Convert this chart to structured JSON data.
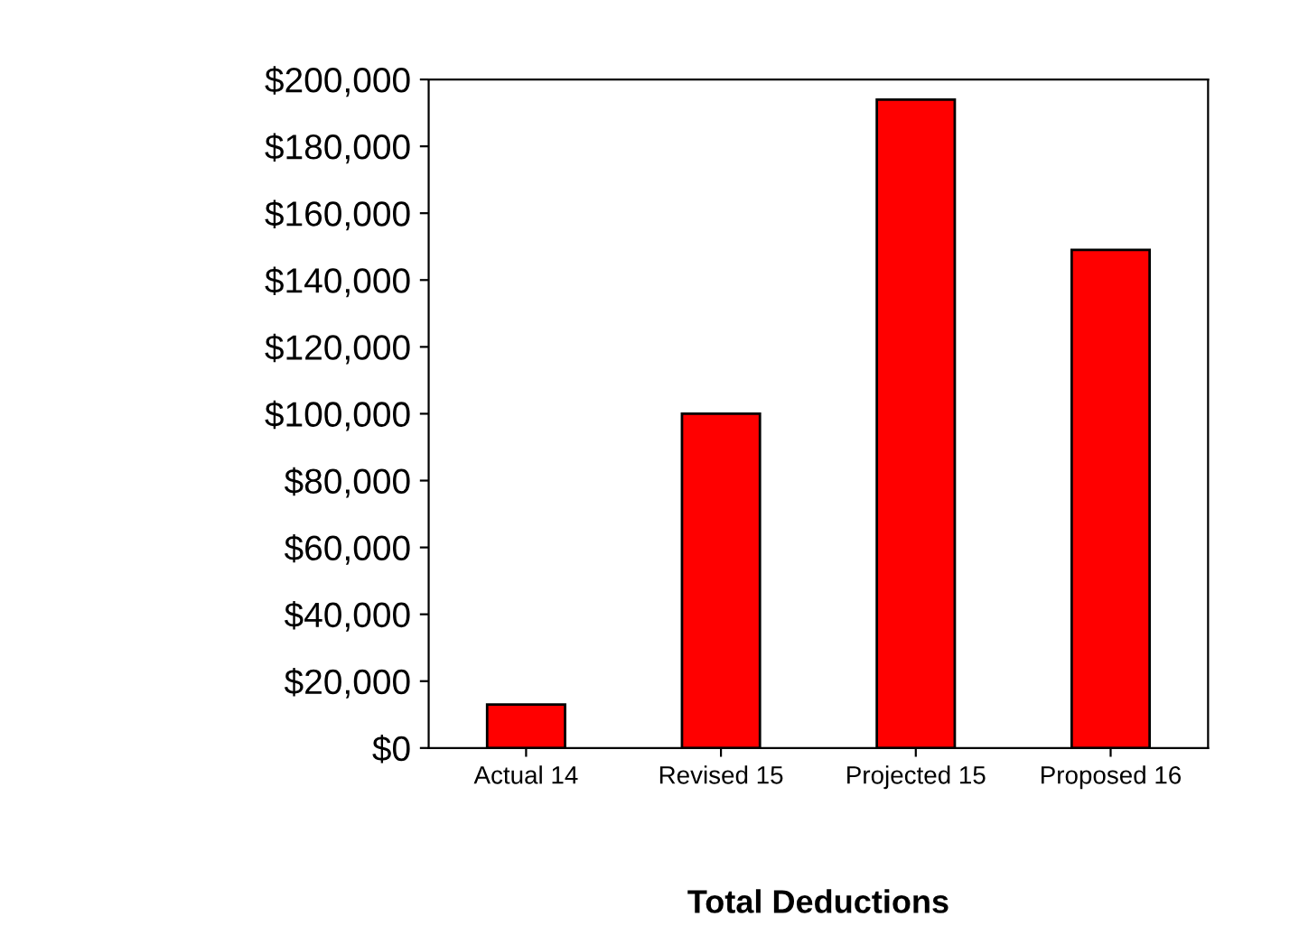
{
  "chart_data": {
    "type": "bar",
    "xlabel": "Total Deductions",
    "categories": [
      "Actual 14",
      "Revised 15",
      "Projected 15",
      "Proposed 16"
    ],
    "values": [
      13000,
      100000,
      194000,
      149000
    ],
    "color": "#ff0000",
    "ylim": [
      0,
      200000
    ],
    "yticks": [
      {
        "value": 0,
        "label": "$0"
      },
      {
        "value": 20000,
        "label": "$20,000"
      },
      {
        "value": 40000,
        "label": "$40,000"
      },
      {
        "value": 60000,
        "label": "$60,000"
      },
      {
        "value": 80000,
        "label": "$80,000"
      },
      {
        "value": 100000,
        "label": "$100,000"
      },
      {
        "value": 120000,
        "label": "$120,000"
      },
      {
        "value": 140000,
        "label": "$140,000"
      },
      {
        "value": 160000,
        "label": "$160,000"
      },
      {
        "value": 180000,
        "label": "$180,000"
      },
      {
        "value": 200000,
        "label": "$200,000"
      }
    ],
    "grid": false
  }
}
